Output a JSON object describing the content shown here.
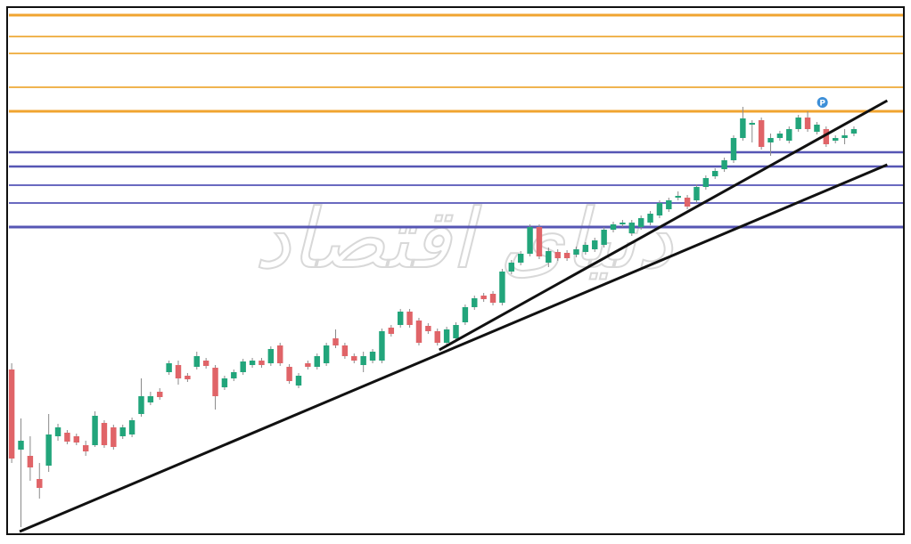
{
  "chart_data": {
    "type": "candlestick",
    "watermark": "دنیای اقتصاد",
    "categories": [
      null,
      null,
      null,
      null,
      null,
      null,
      null,
      null,
      null,
      null,
      null,
      null,
      null,
      null,
      null,
      null,
      null,
      null,
      null,
      null,
      null,
      null,
      null,
      null,
      null,
      null,
      null,
      null,
      null,
      null,
      null,
      null,
      null,
      null,
      null,
      null,
      null,
      null,
      null,
      null,
      null,
      null,
      null,
      null,
      null,
      null,
      null,
      null,
      null,
      null,
      null,
      null,
      null,
      null,
      null,
      null,
      null,
      null,
      null,
      null,
      null,
      null,
      null,
      null,
      null,
      null,
      null,
      null,
      null,
      null,
      null,
      null,
      null,
      null,
      null,
      null,
      null,
      null,
      null,
      null,
      null,
      null,
      null,
      null,
      null,
      null,
      null,
      null,
      null,
      null,
      null,
      null
    ],
    "open": [
      183,
      93,
      86,
      60,
      75,
      108,
      112,
      108,
      98,
      98,
      123,
      118,
      108,
      110,
      133,
      146,
      158,
      180,
      188,
      176,
      186,
      193,
      185,
      163,
      173,
      180,
      188,
      193,
      190,
      210,
      186,
      165,
      190,
      186,
      190,
      218,
      210,
      198,
      188,
      193,
      193,
      230,
      233,
      248,
      238,
      232,
      226,
      213,
      218,
      236,
      253,
      266,
      268,
      258,
      293,
      303,
      313,
      343,
      303,
      315,
      314,
      312,
      315,
      318,
      323,
      340,
      346,
      336,
      343,
      348,
      356,
      363,
      376,
      376,
      373,
      388,
      400,
      408,
      418,
      443,
      458,
      463,
      438,
      443,
      440,
      453,
      466,
      450,
      453,
      440,
      443,
      448
    ],
    "high": [
      190,
      128,
      108,
      78,
      133,
      122,
      115,
      111,
      103,
      136,
      126,
      121,
      121,
      129,
      173,
      158,
      162,
      193,
      193,
      179,
      203,
      196,
      188,
      176,
      183,
      195,
      196,
      196,
      209,
      213,
      189,
      179,
      193,
      201,
      213,
      228,
      213,
      201,
      203,
      206,
      229,
      233,
      251,
      251,
      241,
      235,
      229,
      231,
      236,
      256,
      266,
      269,
      271,
      296,
      306,
      316,
      346,
      346,
      320,
      318,
      317,
      321,
      326,
      331,
      343,
      349,
      351,
      351,
      356,
      361,
      373,
      376,
      383,
      379,
      391,
      401,
      409,
      421,
      446,
      478,
      463,
      466,
      448,
      451,
      456,
      469,
      473,
      461,
      456,
      446,
      453,
      456
    ],
    "low": [
      78,
      6,
      58,
      38,
      68,
      103,
      99,
      98,
      86,
      96,
      95,
      93,
      105,
      107,
      130,
      143,
      149,
      177,
      166,
      169,
      183,
      184,
      138,
      160,
      170,
      177,
      185,
      185,
      187,
      187,
      167,
      162,
      183,
      183,
      187,
      207,
      195,
      190,
      180,
      190,
      190,
      220,
      230,
      230,
      210,
      223,
      210,
      210,
      215,
      233,
      250,
      259,
      255,
      255,
      290,
      300,
      310,
      307,
      298,
      305,
      305,
      309,
      312,
      315,
      320,
      337,
      343,
      333,
      340,
      345,
      353,
      360,
      373,
      363,
      370,
      385,
      397,
      405,
      415,
      440,
      438,
      430,
      423,
      440,
      437,
      450,
      450,
      447,
      433,
      437,
      436,
      445
    ],
    "close": [
      83,
      103,
      73,
      50,
      110,
      118,
      102,
      101,
      91,
      131,
      98,
      96,
      118,
      126,
      153,
      153,
      152,
      190,
      173,
      172,
      198,
      187,
      153,
      173,
      180,
      192,
      193,
      188,
      206,
      190,
      170,
      176,
      186,
      198,
      210,
      210,
      198,
      193,
      198,
      203,
      226,
      223,
      248,
      233,
      213,
      226,
      213,
      228,
      233,
      253,
      263,
      262,
      258,
      293,
      303,
      313,
      343,
      310,
      316,
      308,
      308,
      318,
      323,
      328,
      340,
      346,
      348,
      348,
      353,
      358,
      370,
      373,
      378,
      366,
      388,
      398,
      406,
      418,
      443,
      465,
      460,
      433,
      443,
      448,
      453,
      466,
      453,
      458,
      436,
      443,
      446,
      453
    ],
    "up_color": "#22a57b",
    "down_color": "#e06468",
    "xlim": [
      -0.3,
      96.3
    ],
    "ylim": [
      0,
      588
    ],
    "levels": [
      {
        "value": 581,
        "color": "#f0a430",
        "width": 3
      },
      {
        "value": 557,
        "color": "#f0b450",
        "width": 2
      },
      {
        "value": 538,
        "color": "#f0b450",
        "width": 2
      },
      {
        "value": 500,
        "color": "#f0b450",
        "width": 2
      },
      {
        "value": 473,
        "color": "#f0a430",
        "width": 3
      },
      {
        "value": 427,
        "color": "#5656b4",
        "width": 2.5
      },
      {
        "value": 411,
        "color": "#5656b4",
        "width": 2.5
      },
      {
        "value": 390,
        "color": "#6a6ac0",
        "width": 2
      },
      {
        "value": 370,
        "color": "#6a6ac0",
        "width": 2
      },
      {
        "value": 343,
        "color": "#5656b4",
        "width": 3
      }
    ],
    "trendlines": [
      {
        "x": [
          0.86,
          94.6
        ],
        "y": [
          1,
          413
        ],
        "color": "#111111"
      },
      {
        "x": [
          46.2,
          94.6
        ],
        "y": [
          205,
          485
        ],
        "color": "#111111"
      }
    ],
    "marker": {
      "x": 87.6,
      "y": 483,
      "label": "P",
      "color": "#3d8fd8"
    }
  }
}
